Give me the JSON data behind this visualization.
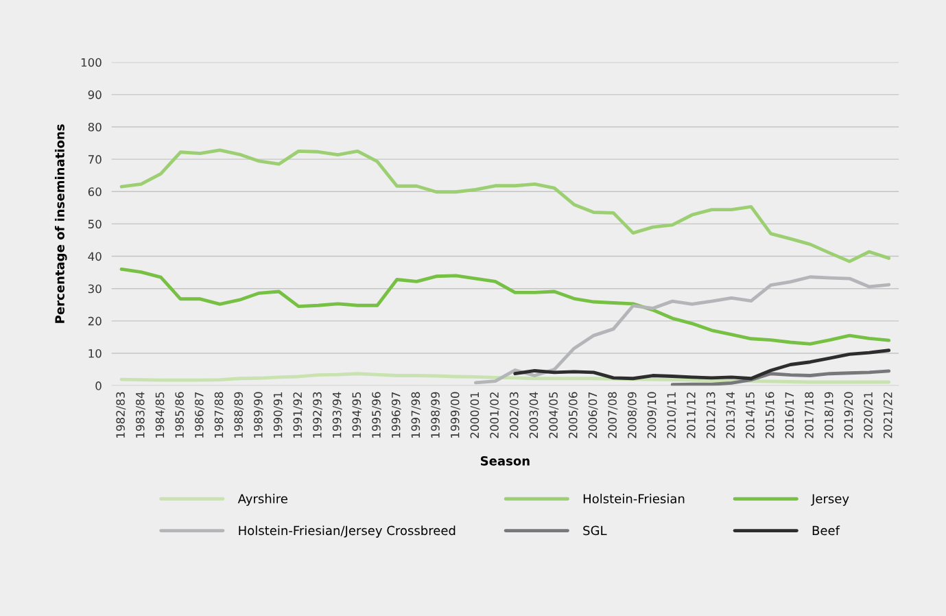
{
  "chart_data": {
    "type": "line",
    "xlabel": "Season",
    "ylabel": "Percentage of inseminations",
    "categories": [
      "1982/83",
      "1983/84",
      "1984/85",
      "1985/86",
      "1986/87",
      "1987/88",
      "1988/89",
      "1989/90",
      "1990/91",
      "1991/92",
      "1992/93",
      "1993/94",
      "1994/95",
      "1995/96",
      "1996/97",
      "1997/98",
      "1998/99",
      "1999/00",
      "2000/01",
      "2001/02",
      "2002/03",
      "2003/04",
      "2004/05",
      "2005/06",
      "2006/07",
      "2007/08",
      "2008/09",
      "2009/10",
      "2010/11",
      "2011/12",
      "2012/13",
      "2013/14",
      "2014/15",
      "2015/16",
      "2016/17",
      "2017/18",
      "2018/19",
      "2019/20",
      "2020/21",
      "2021/22"
    ],
    "ylim": [
      0,
      100
    ],
    "yticks": [
      0,
      10,
      20,
      30,
      40,
      50,
      60,
      70,
      80,
      90,
      100
    ],
    "grid": "y",
    "legend": "bottom",
    "series": [
      {
        "name": "Ayrshire",
        "color": "#c8e3b0",
        "values": [
          1.9,
          1.8,
          1.7,
          1.7,
          1.7,
          1.8,
          2.2,
          2.3,
          2.6,
          2.8,
          3.3,
          3.4,
          3.7,
          3.4,
          3.1,
          3.1,
          3.0,
          2.8,
          2.7,
          2.5,
          2.4,
          2.2,
          2.2,
          2.2,
          2.2,
          2.1,
          2.0,
          1.9,
          1.8,
          1.7,
          1.6,
          1.5,
          1.4,
          1.3,
          1.2,
          1.1,
          1.1,
          1.1,
          1.1,
          1.1
        ]
      },
      {
        "name": "Holstein-Friesian",
        "color": "#9ccf72",
        "values": [
          61.5,
          62.3,
          65.5,
          72.2,
          71.8,
          72.8,
          71.5,
          69.4,
          68.5,
          72.5,
          72.3,
          71.4,
          72.5,
          69.3,
          61.7,
          61.7,
          59.9,
          59.9,
          60.6,
          61.8,
          61.8,
          62.3,
          61.1,
          56.0,
          53.6,
          53.4,
          47.2,
          49.0,
          49.7,
          52.8,
          54.4,
          54.4,
          55.3,
          47.0,
          45.4,
          43.7,
          41.0,
          38.4,
          41.4,
          39.4
        ]
      },
      {
        "name": "Jersey",
        "color": "#76c043",
        "values": [
          36.0,
          35.1,
          33.5,
          26.8,
          26.8,
          25.2,
          26.5,
          28.6,
          29.1,
          24.5,
          24.8,
          25.3,
          24.8,
          24.8,
          32.8,
          32.2,
          33.8,
          34.0,
          33.1,
          32.2,
          28.8,
          28.8,
          29.1,
          26.9,
          25.9,
          25.6,
          25.3,
          23.4,
          20.8,
          19.2,
          17.1,
          15.8,
          14.5,
          14.1,
          13.4,
          12.9,
          14.1,
          15.5,
          14.6,
          14.0
        ]
      },
      {
        "name": "Holstein-Friesian/Jersey Crossbreed",
        "color": "#b4b5b9",
        "values": [
          null,
          null,
          null,
          null,
          null,
          null,
          null,
          null,
          null,
          null,
          null,
          null,
          null,
          null,
          null,
          null,
          null,
          null,
          0.9,
          1.4,
          4.8,
          3.1,
          5.0,
          11.5,
          15.5,
          17.5,
          24.7,
          23.9,
          26.1,
          25.2,
          26.1,
          27.1,
          26.2,
          31.1,
          32.1,
          33.6,
          33.3,
          33.1,
          30.6,
          31.2
        ]
      },
      {
        "name": "SGL",
        "color": "#77787b",
        "values": [
          null,
          null,
          null,
          null,
          null,
          null,
          null,
          null,
          null,
          null,
          null,
          null,
          null,
          null,
          null,
          null,
          null,
          null,
          null,
          null,
          null,
          null,
          null,
          null,
          null,
          null,
          null,
          null,
          0.3,
          0.4,
          0.4,
          0.8,
          1.8,
          3.7,
          3.3,
          3.1,
          3.7,
          3.9,
          4.1,
          4.5
        ]
      },
      {
        "name": "Beef",
        "color": "#2d2d2d",
        "values": [
          null,
          null,
          null,
          null,
          null,
          null,
          null,
          null,
          null,
          null,
          null,
          null,
          null,
          null,
          null,
          null,
          null,
          null,
          null,
          null,
          3.7,
          4.6,
          4.1,
          4.3,
          4.1,
          2.4,
          2.2,
          3.1,
          2.9,
          2.6,
          2.4,
          2.6,
          2.2,
          4.7,
          6.5,
          7.3,
          8.5,
          9.7,
          10.2,
          10.9
        ]
      }
    ]
  }
}
